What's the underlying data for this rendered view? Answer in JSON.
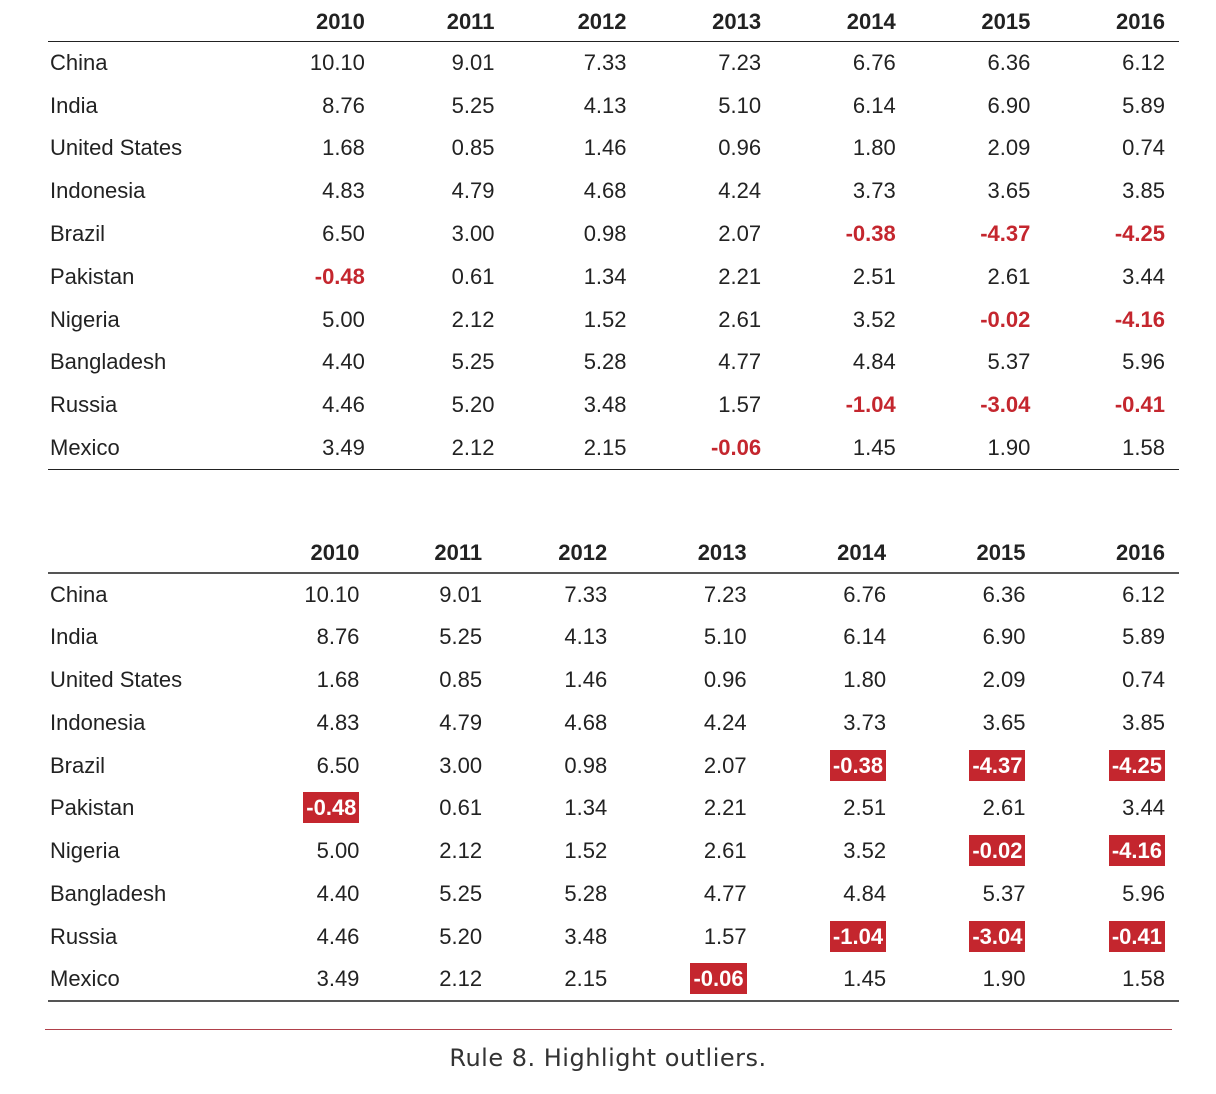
{
  "chart_data": [
    {
      "type": "table",
      "highlight": "red-text",
      "columns": [
        "2010",
        "2011",
        "2012",
        "2013",
        "2014",
        "2015",
        "2016"
      ],
      "rows": [
        {
          "country": "China",
          "values": [
            "10.10",
            "9.01",
            "7.33",
            "7.23",
            "6.76",
            "6.36",
            "6.12"
          ]
        },
        {
          "country": "India",
          "values": [
            "8.76",
            "5.25",
            "4.13",
            "5.10",
            "6.14",
            "6.90",
            "5.89"
          ]
        },
        {
          "country": "United States",
          "values": [
            "1.68",
            "0.85",
            "1.46",
            "0.96",
            "1.80",
            "2.09",
            "0.74"
          ]
        },
        {
          "country": "Indonesia",
          "values": [
            "4.83",
            "4.79",
            "4.68",
            "4.24",
            "3.73",
            "3.65",
            "3.85"
          ]
        },
        {
          "country": "Brazil",
          "values": [
            "6.50",
            "3.00",
            "0.98",
            "2.07",
            "-0.38",
            "-4.37",
            "-4.25"
          ]
        },
        {
          "country": "Pakistan",
          "values": [
            "-0.48",
            "0.61",
            "1.34",
            "2.21",
            "2.51",
            "2.61",
            "3.44"
          ]
        },
        {
          "country": "Nigeria",
          "values": [
            "5.00",
            "2.12",
            "1.52",
            "2.61",
            "3.52",
            "-0.02",
            "-4.16"
          ]
        },
        {
          "country": "Bangladesh",
          "values": [
            "4.40",
            "5.25",
            "5.28",
            "4.77",
            "4.84",
            "5.37",
            "5.96"
          ]
        },
        {
          "country": "Russia",
          "values": [
            "4.46",
            "5.20",
            "3.48",
            "1.57",
            "-1.04",
            "-3.04",
            "-0.41"
          ]
        },
        {
          "country": "Mexico",
          "values": [
            "3.49",
            "2.12",
            "2.15",
            "-0.06",
            "1.45",
            "1.90",
            "1.58"
          ]
        }
      ]
    },
    {
      "type": "table",
      "highlight": "red-box",
      "columns": [
        "2010",
        "2011",
        "2012",
        "2013",
        "2014",
        "2015",
        "2016"
      ],
      "rows": [
        {
          "country": "China",
          "values": [
            "10.10",
            "9.01",
            "7.33",
            "7.23",
            "6.76",
            "6.36",
            "6.12"
          ]
        },
        {
          "country": "India",
          "values": [
            "8.76",
            "5.25",
            "4.13",
            "5.10",
            "6.14",
            "6.90",
            "5.89"
          ]
        },
        {
          "country": "United States",
          "values": [
            "1.68",
            "0.85",
            "1.46",
            "0.96",
            "1.80",
            "2.09",
            "0.74"
          ]
        },
        {
          "country": "Indonesia",
          "values": [
            "4.83",
            "4.79",
            "4.68",
            "4.24",
            "3.73",
            "3.65",
            "3.85"
          ]
        },
        {
          "country": "Brazil",
          "values": [
            "6.50",
            "3.00",
            "0.98",
            "2.07",
            "-0.38",
            "-4.37",
            "-4.25"
          ]
        },
        {
          "country": "Pakistan",
          "values": [
            "-0.48",
            "0.61",
            "1.34",
            "2.21",
            "2.51",
            "2.61",
            "3.44"
          ]
        },
        {
          "country": "Nigeria",
          "values": [
            "5.00",
            "2.12",
            "1.52",
            "2.61",
            "3.52",
            "-0.02",
            "-4.16"
          ]
        },
        {
          "country": "Bangladesh",
          "values": [
            "4.40",
            "5.25",
            "5.28",
            "4.77",
            "4.84",
            "5.37",
            "5.96"
          ]
        },
        {
          "country": "Russia",
          "values": [
            "4.46",
            "5.20",
            "3.48",
            "1.57",
            "-1.04",
            "-3.04",
            "-0.41"
          ]
        },
        {
          "country": "Mexico",
          "values": [
            "3.49",
            "2.12",
            "2.15",
            "-0.06",
            "1.45",
            "1.90",
            "1.58"
          ]
        }
      ]
    }
  ],
  "colors": {
    "outlier": "#c4262e",
    "text": "#222222",
    "divider": "#b0404a"
  },
  "caption": "Rule 8. Highlight outliers."
}
